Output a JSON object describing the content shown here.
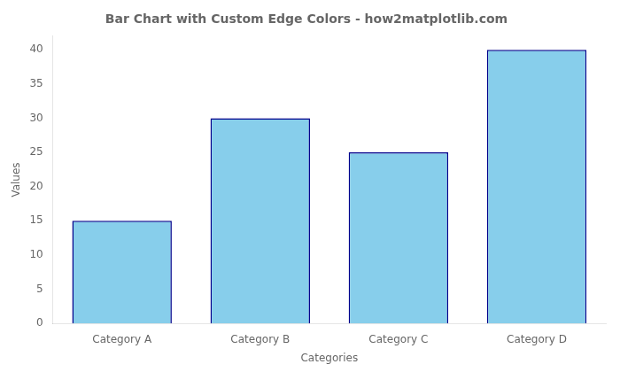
{
  "chart_data": {
    "type": "bar",
    "title": "Bar Chart with Custom Edge Colors - how2matplotlib.com",
    "xlabel": "Categories",
    "ylabel": "Values",
    "categories": [
      "Category A",
      "Category B",
      "Category C",
      "Category D"
    ],
    "values": [
      15,
      30,
      25,
      40
    ],
    "color": "#87CEEB",
    "ylim": [
      0,
      42
    ],
    "yticks": [
      0,
      5,
      10,
      15,
      20,
      25,
      30,
      35,
      40
    ],
    "grid": false
  }
}
